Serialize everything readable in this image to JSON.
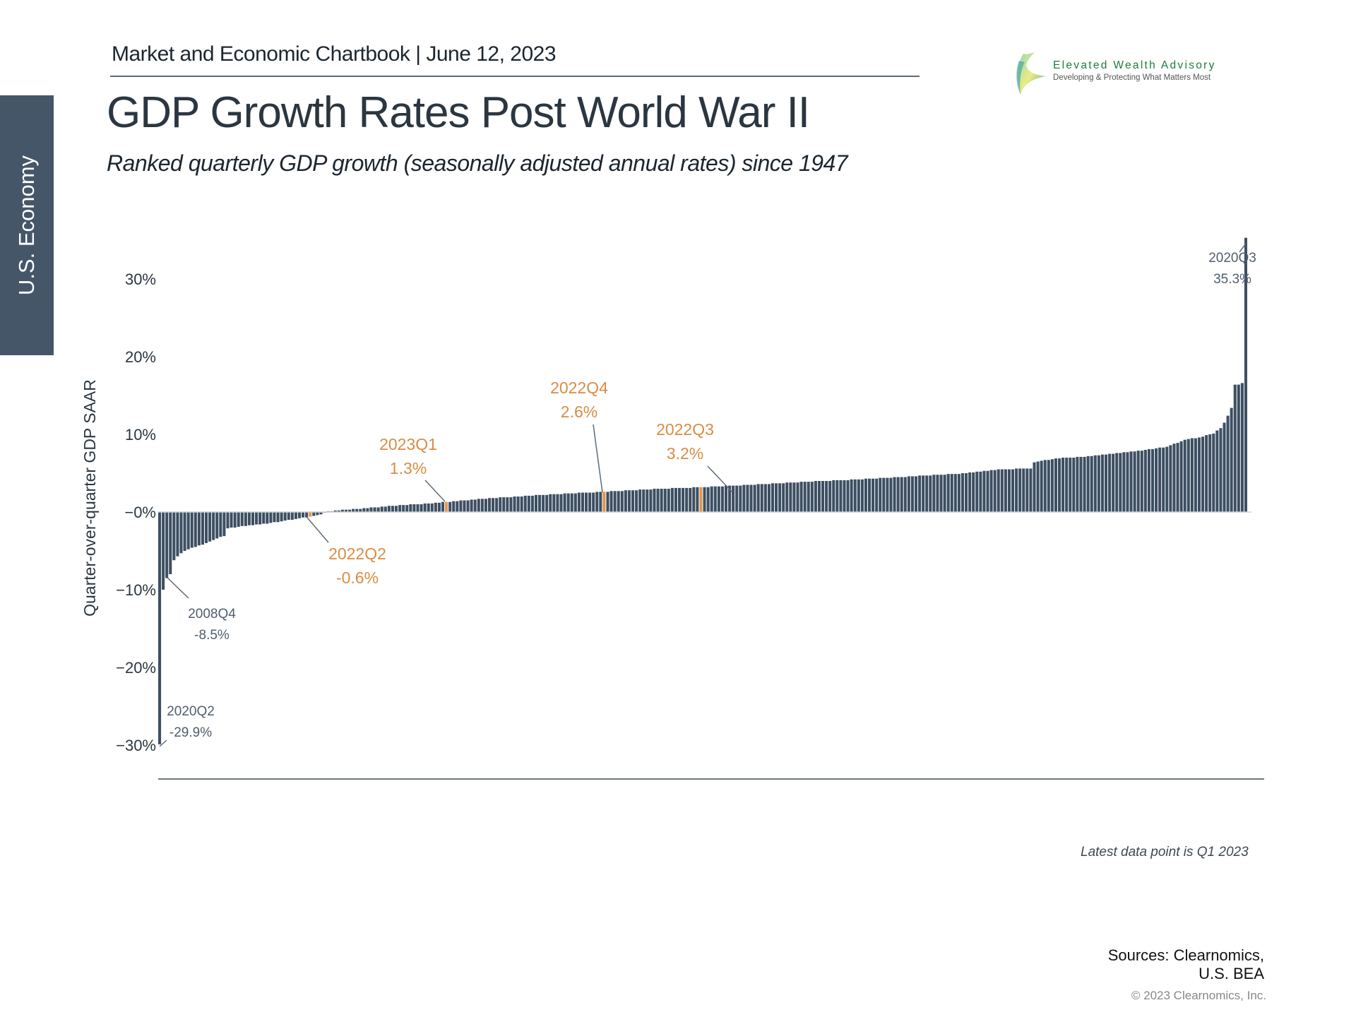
{
  "header": {
    "text": "Market and Economic Chartbook | June 12, 2023"
  },
  "logo": {
    "name": "Elevated Wealth Advisory",
    "tagline": "Developing & Protecting What Matters Most",
    "icon": "sail-leaf-logo-icon"
  },
  "side_tab": {
    "label": "U.S. Economy"
  },
  "title": "GDP Growth Rates Post World War II",
  "subtitle": "Ranked quarterly GDP growth (seasonally adjusted annual rates) since 1947",
  "note": "Latest data point is Q1 2023",
  "sources": {
    "line1": "Sources: Clearnomics,",
    "line2": "U.S. BEA"
  },
  "copyright": "© 2023 Clearnomics, Inc.",
  "colors": {
    "bar": "#3d4f62",
    "highlight": "#e0964f",
    "annotation_dark": "#4f5e6e",
    "annotation_orange": "#d98c45"
  },
  "chart_data": {
    "type": "bar",
    "title": "GDP Growth Rates Post World War II",
    "ylabel": "Quarter-over-quarter GDP SAAR",
    "xlabel": "",
    "ylim": [
      -30,
      35.3
    ],
    "yticks": [
      -30,
      -20,
      -10,
      0,
      10,
      20,
      30
    ],
    "ytick_labels": [
      "−30%",
      "−20%",
      "−10%",
      "−0%",
      "10%",
      "20%",
      "30%"
    ],
    "grid": false,
    "sorted": "ascending",
    "knots": [
      [
        0,
        -29.9
      ],
      [
        1,
        -10.0
      ],
      [
        2,
        -8.5
      ],
      [
        3,
        -8.0
      ],
      [
        4,
        -6.2
      ],
      [
        5,
        -5.7
      ],
      [
        6,
        -5.3
      ],
      [
        8,
        -4.8
      ],
      [
        10,
        -4.5
      ],
      [
        12,
        -4.2
      ],
      [
        14,
        -3.8
      ],
      [
        16,
        -3.4
      ],
      [
        18,
        -3.1
      ],
      [
        19,
        -2.1
      ],
      [
        22,
        -1.9
      ],
      [
        26,
        -1.7
      ],
      [
        30,
        -1.5
      ],
      [
        34,
        -1.2
      ],
      [
        38,
        -0.9
      ],
      [
        42,
        -0.6
      ],
      [
        45,
        -0.3
      ],
      [
        46,
        0.0
      ],
      [
        47,
        0.1
      ],
      [
        55,
        0.4
      ],
      [
        65,
        0.8
      ],
      [
        75,
        1.1
      ],
      [
        80,
        1.3
      ],
      [
        90,
        1.7
      ],
      [
        100,
        2.0
      ],
      [
        110,
        2.3
      ],
      [
        124,
        2.6
      ],
      [
        135,
        2.9
      ],
      [
        151,
        3.2
      ],
      [
        165,
        3.5
      ],
      [
        180,
        3.9
      ],
      [
        195,
        4.2
      ],
      [
        210,
        4.6
      ],
      [
        225,
        5.0
      ],
      [
        235,
        5.5
      ],
      [
        243,
        5.6
      ],
      [
        244,
        6.4
      ],
      [
        250,
        6.9
      ],
      [
        258,
        7.1
      ],
      [
        268,
        7.6
      ],
      [
        275,
        8.0
      ],
      [
        281,
        8.4
      ],
      [
        286,
        9.3
      ],
      [
        290,
        9.6
      ],
      [
        294,
        10.1
      ],
      [
        296,
        10.8
      ],
      [
        297,
        11.5
      ],
      [
        298,
        12.4
      ],
      [
        299,
        13.4
      ],
      [
        300,
        16.4
      ],
      [
        301,
        16.4
      ],
      [
        302,
        16.6
      ],
      [
        303,
        35.3
      ]
    ],
    "count": 304,
    "annotations": [
      {
        "label": "2020Q2",
        "value": "-29.9%",
        "rank": 0,
        "style": "dark"
      },
      {
        "label": "2008Q4",
        "value": "-8.5%",
        "rank": 2,
        "style": "dark"
      },
      {
        "label": "2022Q2",
        "value": "-0.6%",
        "rank": 42,
        "style": "highlight"
      },
      {
        "label": "2023Q1",
        "value": "1.3%",
        "rank": 80,
        "style": "highlight"
      },
      {
        "label": "2022Q4",
        "value": "2.6%",
        "rank": 124,
        "style": "highlight"
      },
      {
        "label": "2022Q3",
        "value": "3.2%",
        "rank": 151,
        "style": "highlight"
      },
      {
        "label": "2020Q3",
        "value": "35.3%",
        "rank": 303,
        "style": "dark"
      }
    ]
  }
}
